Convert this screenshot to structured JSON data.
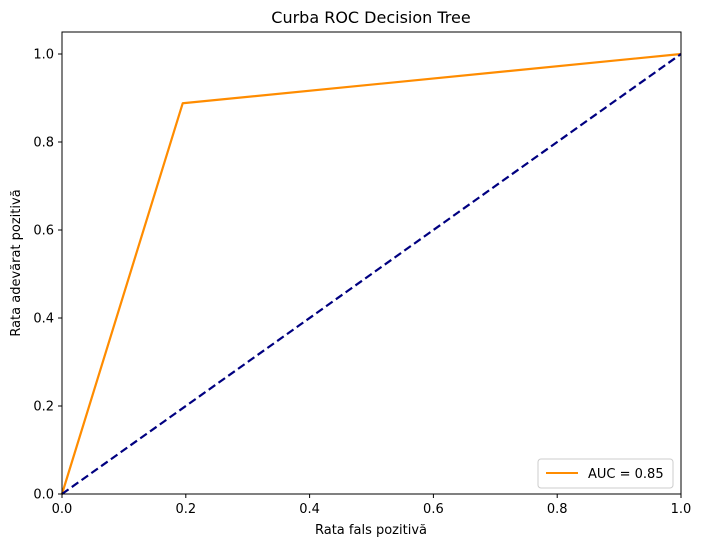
{
  "chart_data": {
    "type": "line",
    "title": "Curba ROC Decision Tree",
    "xlabel": "Rata fals pozitivă",
    "ylabel": "Rata adevărat pozitivă",
    "xlim": [
      0.0,
      1.0
    ],
    "ylim": [
      0.0,
      1.05
    ],
    "xticks": [
      "0.0",
      "0.2",
      "0.4",
      "0.6",
      "0.8",
      "1.0"
    ],
    "yticks": [
      "0.0",
      "0.2",
      "0.4",
      "0.6",
      "0.8",
      "1.0"
    ],
    "grid": false,
    "legend_position": "lower-right",
    "series": [
      {
        "name": "AUC = 0.85",
        "color": "#ff8c00",
        "style": "solid",
        "x": [
          0.0,
          0.195,
          1.0
        ],
        "y": [
          0.0,
          0.888,
          1.0
        ]
      },
      {
        "color": "#000080",
        "style": "dashed",
        "x": [
          0.0,
          1.0
        ],
        "y": [
          0.0,
          1.0
        ]
      }
    ]
  }
}
